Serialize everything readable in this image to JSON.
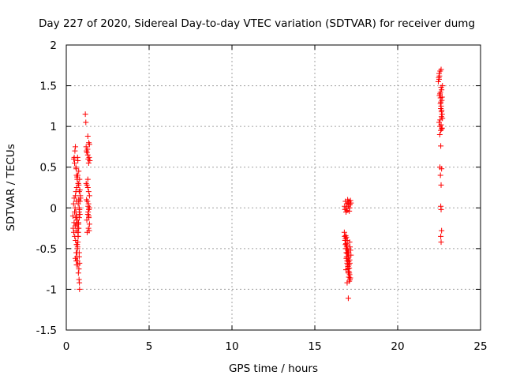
{
  "chart_data": {
    "type": "scatter",
    "title": "Day 227 of 2020, Sidereal Day-to-day VTEC variation (SDTVAR) for receiver dumg",
    "xlabel": "GPS time / hours",
    "ylabel": "SDTVAR / TECUs",
    "xlim": [
      0,
      25
    ],
    "ylim": [
      -1.5,
      2
    ],
    "xticks": [
      "0",
      "5",
      "10",
      "15",
      "20",
      "25"
    ],
    "yticks": [
      "-1.5",
      "-1",
      "-0.5",
      "0",
      "0.5",
      "1",
      "1.5",
      "2"
    ],
    "grid": true,
    "marker": "+",
    "series_color": "#ff0000",
    "series": [
      {
        "name": "SDTVAR",
        "x": [
          0.4,
          0.42,
          0.44,
          0.45,
          0.47,
          0.48,
          0.5,
          0.51,
          0.53,
          0.54,
          0.55,
          0.56,
          0.57,
          0.58,
          0.59,
          0.6,
          0.61,
          0.62,
          0.63,
          0.64,
          0.65,
          0.66,
          0.67,
          0.68,
          0.69,
          0.7,
          0.71,
          0.72,
          0.73,
          0.74,
          0.75,
          0.76,
          0.77,
          0.78,
          0.79,
          0.8,
          0.45,
          0.48,
          0.5,
          0.52,
          0.55,
          0.58,
          0.6,
          0.62,
          0.65,
          0.68,
          0.7,
          0.72,
          0.75,
          0.78,
          0.8,
          0.82,
          0.55,
          0.6,
          0.62,
          0.65,
          0.68,
          0.7,
          0.72,
          0.75,
          0.78,
          0.8,
          0.6,
          0.66,
          0.72,
          0.78,
          0.58,
          0.62,
          0.65,
          0.68,
          0.7,
          0.72,
          0.75,
          0.78,
          0.8,
          0.82,
          0.85,
          0.7,
          0.74,
          0.78,
          0.82,
          0.86,
          1.15,
          1.18,
          1.2,
          1.22,
          1.25,
          1.28,
          1.3,
          1.32,
          1.35,
          1.38,
          1.4,
          1.42,
          1.2,
          1.25,
          1.3,
          1.35,
          1.4,
          1.22,
          1.28,
          1.34,
          1.4,
          1.32,
          1.36,
          1.24,
          1.3,
          1.36,
          1.3,
          1.34,
          1.38,
          1.26,
          1.32,
          1.36,
          1.4,
          1.3,
          1.36,
          16.8,
          16.82,
          16.85,
          16.88,
          16.9,
          16.92,
          16.95,
          16.98,
          17.0,
          17.02,
          17.05,
          17.08,
          17.1,
          17.12,
          17.15,
          17.18,
          16.78,
          16.8,
          16.82,
          16.85,
          16.88,
          16.9,
          16.92,
          16.95,
          16.98,
          17.0,
          17.02,
          17.05,
          17.08,
          17.1,
          17.12,
          17.15,
          17.18,
          16.85,
          16.9,
          16.95,
          17.0,
          17.05,
          17.1,
          16.88,
          16.92,
          16.96,
          17.0,
          17.04,
          17.08,
          17.12,
          16.86,
          16.94,
          17.02,
          17.1,
          16.9,
          16.98,
          17.06,
          17.14,
          16.88,
          16.96,
          17.04,
          16.92,
          17.0,
          17.08,
          16.95,
          17.03,
          17.11,
          17.02,
          22.45,
          22.48,
          22.5,
          22.52,
          22.55,
          22.58,
          22.6,
          22.62,
          22.65,
          22.68,
          22.7,
          22.5,
          22.55,
          22.6,
          22.65,
          22.7,
          22.52,
          22.58,
          22.64,
          22.56,
          22.62,
          22.68,
          22.54,
          22.6,
          22.66,
          22.58,
          22.64,
          22.5,
          22.56,
          22.62,
          22.68,
          22.6,
          22.55,
          22.65,
          22.58,
          22.62,
          22.6,
          22.62,
          22.65,
          22.6,
          22.62,
          22.65,
          22.62
        ],
        "y": [
          -0.1,
          -0.25,
          0.05,
          -0.3,
          -0.18,
          0.12,
          -0.05,
          -0.35,
          0.0,
          -0.22,
          0.15,
          -0.4,
          -0.12,
          0.2,
          -0.28,
          -0.55,
          0.08,
          -0.45,
          0.25,
          -0.6,
          -0.15,
          0.35,
          -0.5,
          -0.65,
          0.4,
          -0.7,
          -0.35,
          0.3,
          -0.8,
          -0.2,
          0.45,
          -0.75,
          -0.88,
          -0.05,
          -0.92,
          -1.0,
          0.6,
          0.62,
          0.55,
          0.7,
          0.75,
          0.5,
          0.48,
          0.4,
          0.38,
          0.62,
          0.58,
          0.3,
          0.28,
          0.2,
          0.35,
          0.22,
          -0.62,
          -0.65,
          -0.7,
          -0.55,
          -0.48,
          -0.42,
          -0.3,
          -0.25,
          -0.6,
          -0.68,
          -0.2,
          -0.45,
          -0.35,
          -0.55,
          -0.05,
          -0.1,
          -0.15,
          -0.2,
          -0.25,
          0.05,
          0.1,
          -0.12,
          -0.02,
          0.08,
          0.15,
          -0.3,
          -0.18,
          0.0,
          -0.08,
          0.12,
          1.15,
          1.05,
          0.75,
          0.7,
          0.68,
          0.72,
          0.65,
          0.6,
          0.55,
          0.62,
          0.78,
          0.58,
          0.3,
          0.28,
          0.25,
          0.2,
          0.15,
          0.1,
          0.08,
          0.05,
          0.0,
          -0.05,
          -0.1,
          -0.15,
          -0.08,
          -0.02,
          0.35,
          -0.25,
          -0.28,
          -0.3,
          0.02,
          -0.12,
          -0.2,
          0.88,
          0.8,
          0.02,
          -0.02,
          0.08,
          -0.05,
          0.0,
          0.05,
          -0.03,
          0.1,
          0.06,
          0.02,
          0.08,
          -0.04,
          0.0,
          0.04,
          0.09,
          0.06,
          -0.3,
          -0.35,
          -0.4,
          -0.45,
          -0.5,
          -0.55,
          -0.6,
          -0.65,
          -0.7,
          -0.75,
          -0.8,
          -0.85,
          -0.9,
          -0.42,
          -0.48,
          -0.52,
          -0.58,
          -0.38,
          -0.62,
          -0.68,
          -0.72,
          -0.78,
          -0.82,
          -0.44,
          -0.5,
          -0.56,
          -0.6,
          -0.66,
          -0.74,
          -0.88,
          -0.34,
          -0.46,
          -0.54,
          -0.64,
          -0.36,
          -0.52,
          -0.7,
          -0.86,
          -0.76,
          -0.4,
          -0.58,
          -0.48,
          -0.62,
          -0.8,
          -0.92,
          -0.54,
          -0.68,
          -1.11,
          1.55,
          1.6,
          1.65,
          1.62,
          1.4,
          1.35,
          1.3,
          1.25,
          1.2,
          1.15,
          1.1,
          1.05,
          1.0,
          0.95,
          1.45,
          1.5,
          1.38,
          1.28,
          1.18,
          1.08,
          1.02,
          0.98,
          0.9,
          1.22,
          1.32,
          1.42,
          1.12,
          1.58,
          1.68,
          1.48,
          1.36,
          0.76,
          0.5,
          0.48,
          0.4,
          0.28,
          0.02,
          -0.02,
          -0.28,
          -0.35,
          -0.42,
          0.97,
          1.7
        ]
      }
    ]
  }
}
